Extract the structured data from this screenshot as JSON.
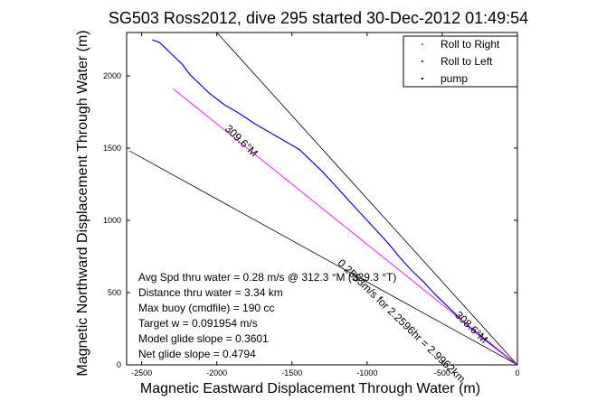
{
  "chart_data": {
    "type": "line",
    "title": "SG503 Ross2012, dive 295 started 30-Dec-2012 01:49:54",
    "xlabel": "Magnetic Eastward Displacement Through Water (m)",
    "ylabel": "Magnetic Northward Displacement Through Water (m)",
    "xlim": [
      -2600,
      0
    ],
    "ylim": [
      0,
      2300
    ],
    "xticks": [
      "-2500",
      "-2000",
      "-1500",
      "-1000",
      "-500",
      "0"
    ],
    "yticks": [
      "0",
      "500",
      "1000",
      "1500",
      "2000"
    ],
    "grid": false,
    "legend_position": "top-right",
    "legend": [
      {
        "name": "Roll to Right",
        "color": "#00cc00"
      },
      {
        "name": "Roll to Left",
        "color": "#ff0000"
      },
      {
        "name": "pump",
        "color": "#000000"
      }
    ],
    "series": [
      {
        "color": "#0000ff",
        "x": [
          -2430,
          -2380,
          -2300,
          -2230,
          -2180,
          -2120,
          -2050,
          -1950,
          -1850,
          -1750,
          -1650,
          -1550,
          -1450,
          -1380,
          -1300,
          -1220,
          -1150,
          -1080,
          -1000,
          -920,
          -850,
          -780,
          -700,
          -620,
          -550,
          -480,
          -400,
          -330,
          -260,
          -200,
          -150,
          -100,
          -50,
          0
        ],
        "y": [
          2250,
          2230,
          2150,
          2080,
          2010,
          1950,
          1880,
          1800,
          1740,
          1670,
          1610,
          1550,
          1490,
          1420,
          1340,
          1250,
          1170,
          1090,
          1000,
          910,
          830,
          740,
          650,
          570,
          490,
          420,
          340,
          270,
          210,
          160,
          120,
          80,
          40,
          0
        ]
      },
      {
        "color": "#ff00ff",
        "x": [
          -2290,
          0
        ],
        "y": [
          1910,
          0
        ]
      }
    ],
    "reference_lines": [
      {
        "color": "#000000",
        "x": [
          -2000,
          0
        ],
        "y": [
          2300,
          0
        ]
      },
      {
        "color": "#000000",
        "x": [
          -2580,
          0
        ],
        "y": [
          1480,
          0
        ]
      }
    ],
    "annotations": [
      {
        "text": "309.6°M",
        "x": -1950,
        "y": 1630,
        "angle": 44
      },
      {
        "text": "308.6°M",
        "x": -420,
        "y": 340,
        "angle": 44
      },
      {
        "text": "0.2553m/s for 2.2596hr = 2.9962km",
        "x": -1200,
        "y": 700,
        "angle": 44
      }
    ],
    "summary": [
      "Avg Spd thru water =  0.28 m/s @ 312.3 °M (329.3 °T)",
      "Distance thru water =  3.34 km",
      "Max buoy (cmdfile) = 190 cc",
      "Target w = 0.091954 m/s",
      "Model glide slope = 0.3601",
      "Net glide slope = 0.4794"
    ]
  }
}
